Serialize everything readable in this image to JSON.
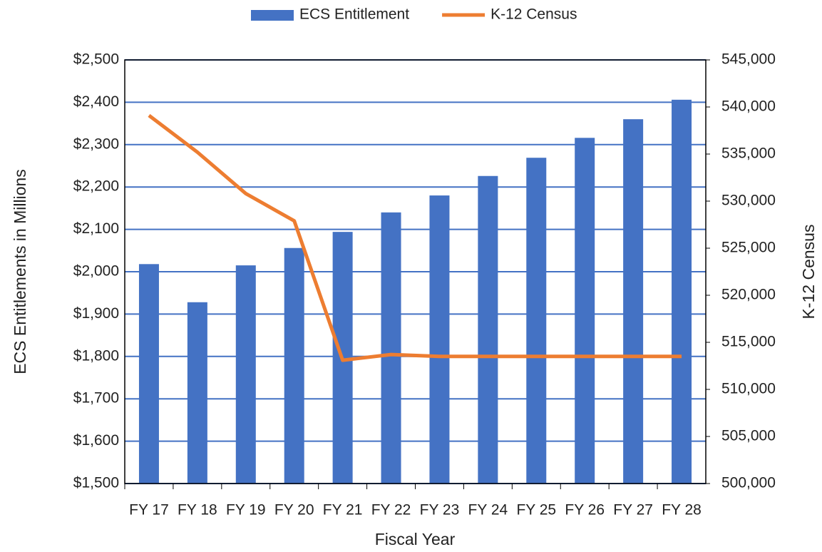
{
  "chart_data": {
    "type": "bar-line",
    "xlabel": "Fiscal Year",
    "ylabel": "ECS Entitlements in Millions",
    "y2label": "K-12 Census",
    "categories": [
      "FY 17",
      "FY 18",
      "FY 19",
      "FY 20",
      "FY 21",
      "FY 22",
      "FY 23",
      "FY 24",
      "FY 25",
      "FY 26",
      "FY 27",
      "FY 28"
    ],
    "series": [
      {
        "name": "ECS Entitlement",
        "type": "bar",
        "color": "#4472c4",
        "values": [
          2018,
          1928,
          2015,
          2056,
          2094,
          2140,
          2180,
          2226,
          2269,
          2316,
          2360,
          2406
        ]
      },
      {
        "name": "K-12 Census",
        "type": "line",
        "axis": "y2",
        "color": "#ed7d31",
        "values": [
          539100,
          535200,
          530800,
          527900,
          513100,
          513700,
          513500,
          513500,
          513500,
          513500,
          513500,
          513500
        ]
      }
    ],
    "ylim": [
      1500,
      2500
    ],
    "yticks": [
      {
        "value": 1500,
        "label": "$1,500"
      },
      {
        "value": 1600,
        "label": "$1,600"
      },
      {
        "value": 1700,
        "label": "$1,700"
      },
      {
        "value": 1800,
        "label": "$1,800"
      },
      {
        "value": 1900,
        "label": "$1,900"
      },
      {
        "value": 2000,
        "label": "$2,000"
      },
      {
        "value": 2100,
        "label": "$2,100"
      },
      {
        "value": 2200,
        "label": "$2,200"
      },
      {
        "value": 2300,
        "label": "$2,300"
      },
      {
        "value": 2400,
        "label": "$2,400"
      },
      {
        "value": 2500,
        "label": "$2,500"
      }
    ],
    "y2lim": [
      500000,
      545000
    ],
    "y2ticks": [
      {
        "value": 500000,
        "label": "500,000"
      },
      {
        "value": 505000,
        "label": "505,000"
      },
      {
        "value": 510000,
        "label": "510,000"
      },
      {
        "value": 515000,
        "label": "515,000"
      },
      {
        "value": 520000,
        "label": "520,000"
      },
      {
        "value": 525000,
        "label": "525,000"
      },
      {
        "value": 530000,
        "label": "530,000"
      },
      {
        "value": 535000,
        "label": "535,000"
      },
      {
        "value": 540000,
        "label": "540,000"
      },
      {
        "value": 545000,
        "label": "545,000"
      }
    ],
    "grid": true,
    "grid_color": "#4472c4",
    "legend": "top"
  }
}
